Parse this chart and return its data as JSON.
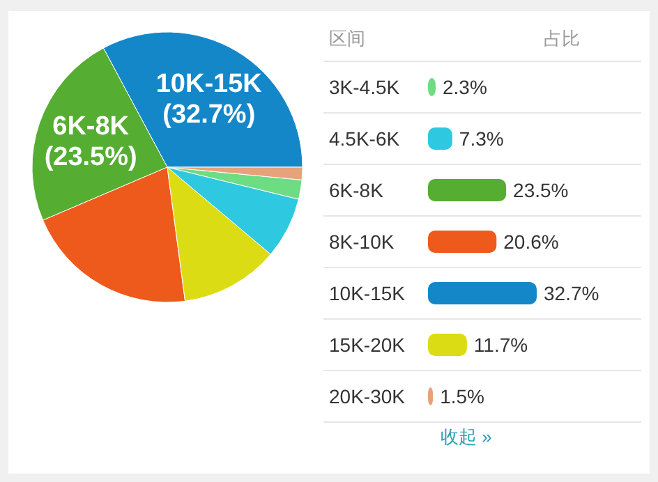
{
  "chart_data": [
    {
      "type": "pie",
      "categories": [
        "10K-15K",
        "6K-8K",
        null,
        null,
        null,
        null,
        null
      ],
      "values": [
        32.7,
        23.5,
        20.6,
        11.7,
        7.3,
        2.3,
        1.5
      ],
      "colors": [
        "#1487c9",
        "#55ad32",
        "#ee5a1c",
        "#dcdc14",
        "#2ec8e0",
        "#6edc82",
        "#e8a27a"
      ],
      "value_labels": [
        "(32.7%)",
        "(23.5%)",
        null,
        null,
        null,
        null,
        null
      ]
    },
    {
      "type": "bar",
      "orientation": "horizontal",
      "ylabel": "区间",
      "xlabel": "占比",
      "categories": [
        "3K-4.5K",
        "4.5K-6K",
        "6K-8K",
        "8K-10K",
        "10K-15K",
        "15K-20K",
        "20K-30K"
      ],
      "values": [
        2.3,
        7.3,
        23.5,
        20.6,
        32.7,
        11.7,
        1.5
      ],
      "colors": [
        "#6edc82",
        "#2ec8e0",
        "#55ad32",
        "#ee5a1c",
        "#1487c9",
        "#dcdc14",
        "#e8a27a"
      ],
      "value_labels": [
        "2.3%",
        "7.3%",
        "23.5%",
        "20.6%",
        "32.7%",
        "11.7%",
        "1.5%"
      ],
      "annotations": [
        "收起 »"
      ]
    }
  ]
}
